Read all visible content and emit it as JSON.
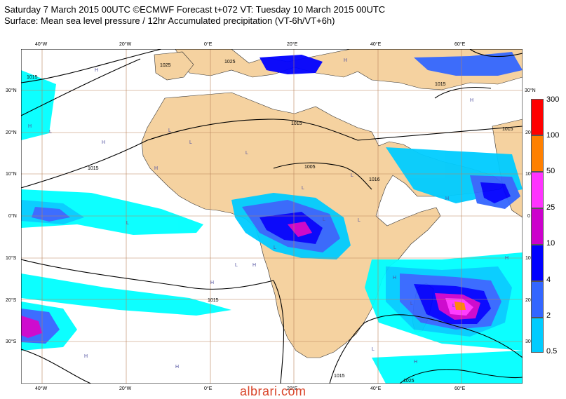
{
  "header": {
    "line1": "Saturday 7 March 2015 00UTC ©ECMWF Forecast t+072 VT: Tuesday 10 March 2015 00UTC",
    "line2": "Surface: Mean sea level pressure / 12hr Accumulated precipitation (VT-6h/VT+6h)"
  },
  "axes": {
    "lon_labels": [
      "40°W",
      "20°W",
      "0°E",
      "20°E",
      "40°E",
      "60°E"
    ],
    "lat_labels": [
      "30°N",
      "20°N",
      "10°N",
      "0°N",
      "10°S",
      "20°S",
      "30°S"
    ],
    "right_lat_labels": [
      "30°N",
      "20",
      "10",
      "0",
      "10",
      "20",
      "30"
    ]
  },
  "isobars": {
    "labels": [
      "1025",
      "1015",
      "1015",
      "1015",
      "1005",
      "1016",
      "1015",
      "1015",
      "1025",
      "1015",
      "1015",
      "1025"
    ]
  },
  "pressure_centers": {
    "highs": [
      "H",
      "H",
      "H",
      "H",
      "H",
      "H",
      "H",
      "H",
      "H",
      "H",
      "H",
      "H",
      "H",
      "H"
    ],
    "lows": [
      "L",
      "L",
      "L",
      "L",
      "L",
      "L",
      "L",
      "L",
      "L",
      "L",
      "L",
      "L",
      "L",
      "L"
    ]
  },
  "legend": {
    "levels": [
      "300",
      "100",
      "50",
      "25",
      "10",
      "4",
      "2",
      "0.5"
    ],
    "colors": [
      "#ff0000",
      "#ff8000",
      "#ff33ff",
      "#cc00cc",
      "#0000ff",
      "#3366ff",
      "#00ccff",
      "#00ffff"
    ]
  },
  "colors": {
    "land": "#f5d2a0",
    "sea": "#ffffff",
    "grid": "#b9815a",
    "isobar": "#000000"
  },
  "watermark": "albrari.com"
}
